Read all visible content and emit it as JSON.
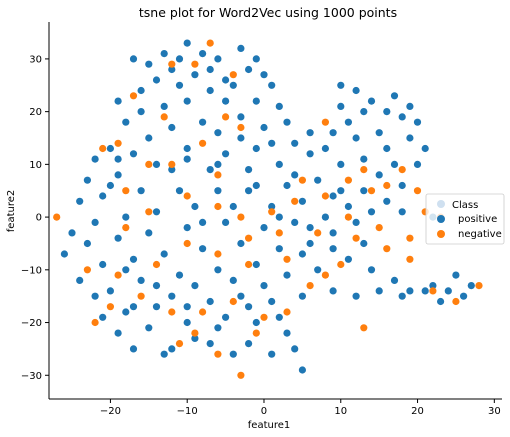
{
  "chart_data": {
    "type": "scatter",
    "title": "tsne plot for Word2Vec using 1000 points",
    "xlabel": "feature1",
    "ylabel": "feature2",
    "xlim": [
      -28,
      31
    ],
    "ylim": [
      -34.5,
      37
    ],
    "xticks": [
      -20,
      -10,
      0,
      10,
      20,
      30
    ],
    "yticks": [
      -30,
      -20,
      -10,
      0,
      10,
      20,
      30
    ],
    "grid": false,
    "legend": {
      "title": "Class",
      "position": "center-right",
      "entries": [
        {
          "label": "positive",
          "color": "#1f77b4"
        },
        {
          "label": "negative",
          "color": "#ff7f0e"
        }
      ]
    },
    "series": [
      {
        "name": "positive",
        "color": "#1f77b4",
        "points": [
          [
            -13,
            31
          ],
          [
            -10,
            33
          ],
          [
            -8,
            31
          ],
          [
            -15,
            29
          ],
          [
            -17,
            30
          ],
          [
            -6,
            30
          ],
          [
            -3,
            32
          ],
          [
            -2,
            28
          ],
          [
            -12,
            28
          ],
          [
            -9,
            27
          ],
          [
            -14,
            26
          ],
          [
            -11,
            25
          ],
          [
            -7,
            24
          ],
          [
            -4,
            25
          ],
          [
            0,
            27
          ],
          [
            1,
            25
          ],
          [
            -1,
            22
          ],
          [
            -5,
            22
          ],
          [
            -10,
            22
          ],
          [
            -13,
            21
          ],
          [
            -16,
            20
          ],
          [
            -18,
            18
          ],
          [
            -8,
            18
          ],
          [
            -3,
            19
          ],
          [
            2,
            21
          ],
          [
            3,
            18
          ],
          [
            0,
            17
          ],
          [
            -6,
            16
          ],
          [
            -12,
            17
          ],
          [
            -15,
            15
          ],
          [
            -20,
            13
          ],
          [
            -22,
            11
          ],
          [
            -17,
            12
          ],
          [
            -10,
            13
          ],
          [
            -5,
            12
          ],
          [
            -1,
            13
          ],
          [
            4,
            14
          ],
          [
            6,
            12
          ],
          [
            2,
            10
          ],
          [
            -2,
            9
          ],
          [
            -7,
            9
          ],
          [
            -12,
            9
          ],
          [
            -19,
            8
          ],
          [
            -23,
            7
          ],
          [
            -21,
            4
          ],
          [
            -16,
            5
          ],
          [
            -11,
            5
          ],
          [
            -6,
            5
          ],
          [
            -2,
            5
          ],
          [
            3,
            6
          ],
          [
            7,
            7
          ],
          [
            9,
            4
          ],
          [
            5,
            3
          ],
          [
            1,
            2
          ],
          [
            -4,
            2
          ],
          [
            -9,
            2
          ],
          [
            -14,
            1
          ],
          [
            -18,
            0
          ],
          [
            -22,
            -1
          ],
          [
            -25,
            -3
          ],
          [
            -19,
            -4
          ],
          [
            -15,
            -3
          ],
          [
            -10,
            -2
          ],
          [
            -5,
            -1
          ],
          [
            0,
            -2
          ],
          [
            4,
            -1
          ],
          [
            8,
            0
          ],
          [
            11,
            2
          ],
          [
            13,
            5
          ],
          [
            15,
            8
          ],
          [
            17,
            10
          ],
          [
            18,
            6
          ],
          [
            16,
            3
          ],
          [
            12,
            -1
          ],
          [
            9,
            -3
          ],
          [
            6,
            -5
          ],
          [
            2,
            -6
          ],
          [
            -3,
            -5
          ],
          [
            -8,
            -6
          ],
          [
            -13,
            -7
          ],
          [
            -17,
            -8
          ],
          [
            -21,
            -9
          ],
          [
            -24,
            -12
          ],
          [
            -20,
            -14
          ],
          [
            -16,
            -12
          ],
          [
            -11,
            -11
          ],
          [
            -6,
            -10
          ],
          [
            -1,
            -9
          ],
          [
            3,
            -11
          ],
          [
            7,
            -10
          ],
          [
            11,
            -8
          ],
          [
            14,
            -10
          ],
          [
            17,
            -12
          ],
          [
            19,
            -14
          ],
          [
            22,
            -13
          ],
          [
            24,
            -14
          ],
          [
            26,
            -15
          ],
          [
            27,
            -13
          ],
          [
            25,
            -11
          ],
          [
            23,
            -16
          ],
          [
            21,
            -14
          ],
          [
            18,
            -15
          ],
          [
            15,
            -14
          ],
          [
            12,
            -15
          ],
          [
            9,
            -14
          ],
          [
            5,
            -15
          ],
          [
            1,
            -16
          ],
          [
            -3,
            -15
          ],
          [
            -7,
            -16
          ],
          [
            -12,
            -15
          ],
          [
            -17,
            -17
          ],
          [
            -21,
            -19
          ],
          [
            -19,
            -22
          ],
          [
            -15,
            -21
          ],
          [
            -10,
            -20
          ],
          [
            -5,
            -19
          ],
          [
            -1,
            -20
          ],
          [
            3,
            -22
          ],
          [
            -2,
            -24
          ],
          [
            -7,
            -24
          ],
          [
            -12,
            -25
          ],
          [
            -17,
            -25
          ],
          [
            -13,
            -26
          ],
          [
            -9,
            -23
          ],
          [
            -4,
            -26
          ],
          [
            1,
            -26
          ],
          [
            4,
            -25
          ],
          [
            5,
            -29
          ],
          [
            10,
            25
          ],
          [
            12,
            24
          ],
          [
            14,
            22
          ],
          [
            16,
            20
          ],
          [
            18,
            19
          ],
          [
            20,
            18
          ],
          [
            19,
            21
          ],
          [
            17,
            23
          ],
          [
            13,
            20
          ],
          [
            11,
            18
          ],
          [
            9,
            16
          ],
          [
            12,
            15
          ],
          [
            15,
            16
          ],
          [
            19,
            15
          ],
          [
            21,
            13
          ],
          [
            10,
            21
          ],
          [
            8,
            13
          ],
          [
            6,
            16
          ],
          [
            10,
            10
          ],
          [
            13,
            11
          ],
          [
            16,
            13
          ],
          [
            20,
            10
          ],
          [
            -26,
            -7
          ],
          [
            -23,
            -5
          ],
          [
            -18,
            -10
          ],
          [
            -14,
            -13
          ],
          [
            -9,
            -13
          ],
          [
            -4,
            -12
          ],
          [
            0,
            -13
          ],
          [
            5,
            -7
          ],
          [
            9,
            -6
          ],
          [
            13,
            -5
          ],
          [
            2,
            0
          ],
          [
            -1,
            6
          ],
          [
            -6,
            10
          ],
          [
            -10,
            11
          ],
          [
            -14,
            10
          ],
          [
            -19,
            11
          ],
          [
            -3,
            15
          ],
          [
            1,
            14
          ],
          [
            4,
            8
          ],
          [
            -24,
            3
          ],
          [
            -20,
            6
          ],
          [
            -8,
            -1
          ],
          [
            6,
            -2
          ],
          [
            10,
            5
          ],
          [
            14,
            1
          ],
          [
            18,
            1
          ],
          [
            22,
            0
          ],
          [
            -22,
            -15
          ],
          [
            -18,
            -18
          ],
          [
            -14,
            -17
          ],
          [
            -10,
            -17
          ],
          [
            -6,
            -21
          ],
          [
            -2,
            -17
          ],
          [
            2,
            -19
          ],
          [
            -11,
            30
          ],
          [
            -7,
            28
          ],
          [
            -5,
            26
          ],
          [
            -1,
            30
          ],
          [
            -16,
            24
          ],
          [
            -19,
            22
          ]
        ]
      },
      {
        "name": "negative",
        "color": "#ff7f0e",
        "points": [
          [
            -7,
            33
          ],
          [
            -12,
            29
          ],
          [
            -9,
            29
          ],
          [
            -4,
            27
          ],
          [
            -17,
            23
          ],
          [
            -13,
            19
          ],
          [
            -19,
            14
          ],
          [
            -21,
            13
          ],
          [
            -18,
            5
          ],
          [
            -15,
            10
          ],
          [
            -5,
            19
          ],
          [
            -3,
            17
          ],
          [
            -8,
            14
          ],
          [
            -12,
            10
          ],
          [
            -10,
            4
          ],
          [
            -6,
            2
          ],
          [
            -3,
            0
          ],
          [
            1,
            1
          ],
          [
            4,
            3
          ],
          [
            2,
            -3
          ],
          [
            -2,
            -4
          ],
          [
            -6,
            -7
          ],
          [
            -10,
            -5
          ],
          [
            -14,
            -9
          ],
          [
            -19,
            -11
          ],
          [
            -23,
            -10
          ],
          [
            -27,
            0
          ],
          [
            -16,
            -15
          ],
          [
            -12,
            -18
          ],
          [
            -8,
            -18
          ],
          [
            -4,
            -16
          ],
          [
            -1,
            -22
          ],
          [
            -3,
            -30
          ],
          [
            -6,
            -26
          ],
          [
            -11,
            -24
          ],
          [
            -20,
            -17
          ],
          [
            -22,
            -20
          ],
          [
            8,
            18
          ],
          [
            11,
            7
          ],
          [
            13,
            9
          ],
          [
            14,
            5
          ],
          [
            16,
            6
          ],
          [
            18,
            9
          ],
          [
            20,
            5
          ],
          [
            21,
            1
          ],
          [
            23,
            0
          ],
          [
            19,
            -4
          ],
          [
            15,
            -2
          ],
          [
            12,
            -4
          ],
          [
            10,
            -9
          ],
          [
            8,
            -11
          ],
          [
            6,
            -13
          ],
          [
            3,
            -18
          ],
          [
            0,
            -19
          ],
          [
            13,
            -21
          ],
          [
            22,
            -14
          ],
          [
            25,
            -16
          ],
          [
            28,
            -13
          ],
          [
            8,
            4
          ],
          [
            5,
            7
          ],
          [
            -6,
            8
          ],
          [
            -15,
            1
          ],
          [
            -18,
            -2
          ],
          [
            -9,
            -22
          ],
          [
            -2,
            -9
          ],
          [
            3,
            -8
          ],
          [
            7,
            -3
          ],
          [
            11,
            0
          ],
          [
            16,
            -6
          ],
          [
            19,
            -8
          ]
        ]
      }
    ]
  }
}
